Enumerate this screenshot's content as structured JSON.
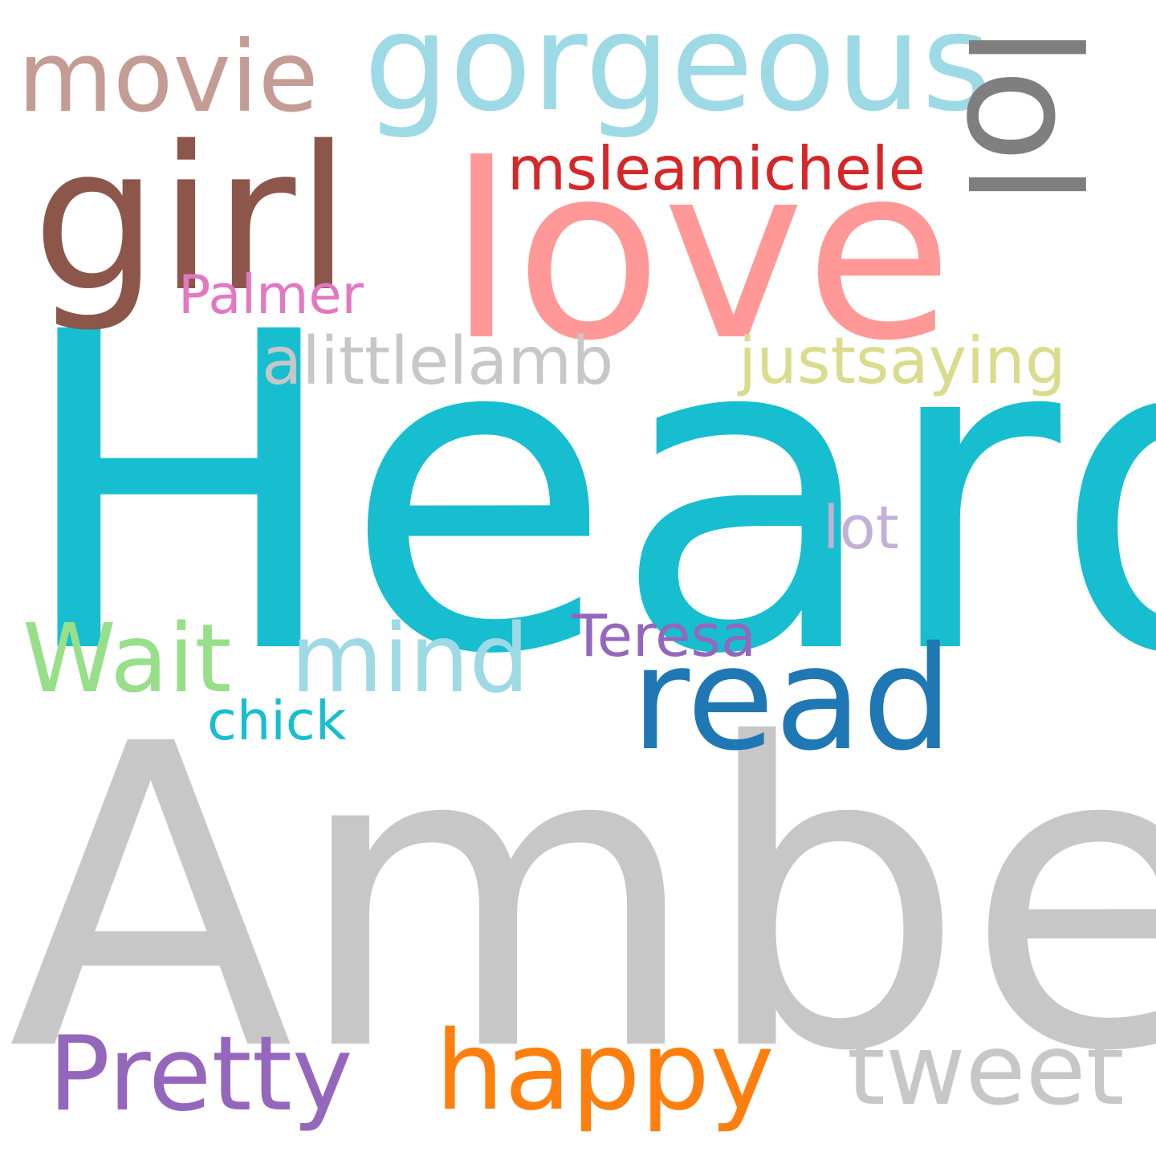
{
  "words": [
    {
      "text": "Heard",
      "color": "#17becf"
    },
    {
      "text": "Amber",
      "color": "#c7c7c7"
    },
    {
      "text": "love",
      "color": "#ff9896"
    },
    {
      "text": "girl",
      "color": "#8c564b"
    },
    {
      "text": "gorgeous",
      "color": "#9edae5"
    },
    {
      "text": "lol",
      "color": "#7f7f7f"
    },
    {
      "text": "movie",
      "color": "#c49c94"
    },
    {
      "text": "msleamichele",
      "color": "#d62728"
    },
    {
      "text": "Palmer",
      "color": "#e377c2"
    },
    {
      "text": "alittlelamb",
      "color": "#c7c7c7"
    },
    {
      "text": "justsaying",
      "color": "#dbdb8d"
    },
    {
      "text": "lot",
      "color": "#c5b0d5"
    },
    {
      "text": "Wait",
      "color": "#98df8a"
    },
    {
      "text": "mind",
      "color": "#9edae5"
    },
    {
      "text": "Teresa",
      "color": "#9467bd"
    },
    {
      "text": "read",
      "color": "#1f77b4"
    },
    {
      "text": "chick",
      "color": "#17becf"
    },
    {
      "text": "Pretty",
      "color": "#9467bd"
    },
    {
      "text": "happy",
      "color": "#ff7f0e"
    },
    {
      "text": "tweet",
      "color": "#c7c7c7"
    }
  ]
}
